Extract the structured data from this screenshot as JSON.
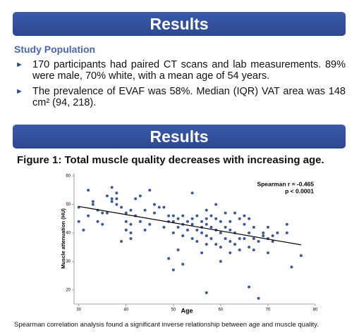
{
  "header": {
    "title": "Results"
  },
  "section": {
    "heading": "Study Population",
    "bullets": [
      "170 participants had paired CT scans and lab measurements. 89% were male, 70% white, with a mean age of 54 years.",
      "The prevalence of EVAF was 58%. Median (IQR) VAT area was 148 cm² (94, 218)."
    ]
  },
  "results_banner": {
    "title": "Results"
  },
  "chart_data": {
    "type": "scatter",
    "title": "Figure 1: Total muscle quality decreases with increasing age.",
    "x_label": "Age",
    "y_label": "Muscle attenuation (HU)",
    "annotations": [
      "Spearman r = -0.465",
      "p < 0.0001"
    ],
    "color": "#3b5998",
    "xlim": [
      29,
      80
    ],
    "ylim": [
      15,
      61
    ],
    "xticks": [
      30,
      40,
      50,
      60,
      70,
      80
    ],
    "yticks": [
      20,
      30,
      40,
      50,
      60
    ],
    "x": [
      30,
      30,
      31,
      32,
      32,
      33,
      33,
      34,
      34,
      35,
      35,
      36,
      36,
      37,
      37,
      37,
      38,
      38,
      38,
      39,
      39,
      40,
      40,
      40,
      41,
      41,
      41,
      41,
      42,
      42,
      43,
      43,
      44,
      44,
      45,
      45,
      46,
      46,
      47,
      48,
      48,
      49,
      49,
      49,
      50,
      50,
      50,
      50,
      51,
      51,
      51,
      52,
      52,
      52,
      52,
      53,
      53,
      54,
      54,
      54,
      54,
      55,
      55,
      55,
      56,
      56,
      56,
      56,
      57,
      57,
      57,
      57,
      57,
      57,
      58,
      58,
      58,
      59,
      59,
      59,
      59,
      60,
      60,
      60,
      60,
      61,
      61,
      61,
      62,
      62,
      62,
      62,
      63,
      63,
      63,
      64,
      64,
      64,
      65,
      65,
      65,
      66,
      66,
      66,
      66,
      67,
      67,
      67,
      68,
      68,
      69,
      69,
      70,
      70,
      70,
      71,
      71,
      72,
      74,
      74,
      75,
      77
    ],
    "values": [
      44,
      49,
      41,
      55,
      46,
      50,
      51,
      44,
      48,
      43,
      47,
      47,
      53,
      56,
      52,
      51,
      54,
      50,
      52,
      49,
      37,
      44,
      41,
      47,
      48,
      38,
      40,
      43,
      46,
      52,
      53,
      44,
      48,
      41,
      55,
      43,
      50,
      47,
      49,
      49,
      42,
      44,
      46,
      31,
      27,
      46,
      44,
      40,
      45,
      42,
      34,
      46,
      43,
      39,
      29,
      44,
      41,
      45,
      43,
      38,
      54,
      46,
      41,
      37,
      44,
      42,
      40,
      33,
      48,
      45,
      43,
      39,
      36,
      19,
      42,
      46,
      38,
      45,
      50,
      41,
      36,
      40,
      35,
      30,
      44,
      47,
      42,
      38,
      41,
      37,
      33,
      44,
      47,
      40,
      36,
      45,
      38,
      34,
      43,
      38,
      46,
      40,
      35,
      45,
      21,
      38,
      34,
      42,
      17,
      37,
      40,
      39,
      42,
      38,
      33,
      39,
      37,
      40,
      43,
      40,
      28,
      32
    ],
    "trend_line": {
      "x": [
        30,
        77
      ],
      "y": [
        49.3,
        35.8
      ]
    }
  },
  "caption": "Spearman correlation analysis found a significant inverse relationship between age and muscle quality."
}
